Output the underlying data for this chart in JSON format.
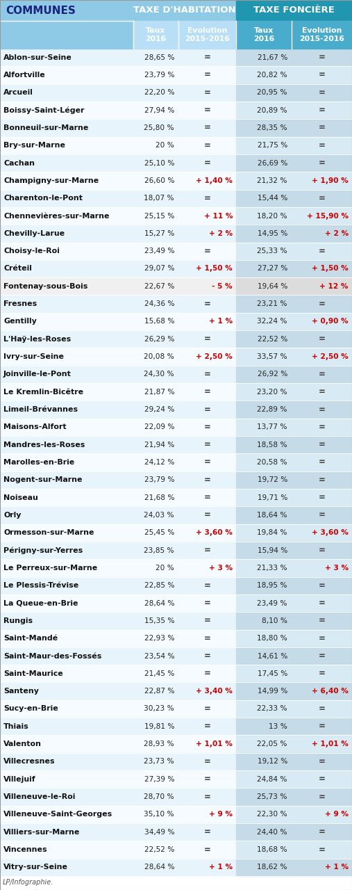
{
  "header1": "TAXE D'HABITATION",
  "header2": "TAXE FONCIÈRE",
  "col_communes": "COMMUNES",
  "footer": "LP/Infographie.",
  "rows": [
    [
      "Ablon-sur-Seine",
      "28,65 %",
      "=",
      "21,67 %",
      "="
    ],
    [
      "Alfortville",
      "23,79 %",
      "=",
      "20,82 %",
      "="
    ],
    [
      "Arcueil",
      "22,20 %",
      "=",
      "20,95 %",
      "="
    ],
    [
      "Boissy-Saint-Léger",
      "27,94 %",
      "=",
      "20,89 %",
      "="
    ],
    [
      "Bonneuil-sur-Marne",
      "25,80 %",
      "=",
      "28,35 %",
      "="
    ],
    [
      "Bry-sur-Marne",
      "20 %",
      "=",
      "21,75 %",
      "="
    ],
    [
      "Cachan",
      "25,10 %",
      "=",
      "26,69 %",
      "="
    ],
    [
      "Champigny-sur-Marne",
      "26,60 %",
      "+ 1,40 %",
      "21,32 %",
      "+ 1,90 %"
    ],
    [
      "Charenton-le-Pont",
      "18,07 %",
      "=",
      "15,44 %",
      "="
    ],
    [
      "Chennevières-sur-Marne",
      "25,15 %",
      "+ 11 %",
      "18,20 %",
      "+ 15,90 %"
    ],
    [
      "Chevilly-Larue",
      "15,27 %",
      "+ 2 %",
      "14,95 %",
      "+ 2 %"
    ],
    [
      "Choisy-le-Roi",
      "23,49 %",
      "=",
      "25,33 %",
      "="
    ],
    [
      "Créteil",
      "29,07 %",
      "+ 1,50 %",
      "27,27 %",
      "+ 1,50 %"
    ],
    [
      "Fontenay-sous-Bois",
      "22,67 %",
      "- 5 %",
      "19,64 %",
      "+ 12 %"
    ],
    [
      "Fresnes",
      "24,36 %",
      "=",
      "23,21 %",
      "="
    ],
    [
      "Gentilly",
      "15,68 %",
      "+ 1 %",
      "32,24 %",
      "+ 0,90 %"
    ],
    [
      "L'Haÿ-les-Roses",
      "26,29 %",
      "=",
      "22,52 %",
      "="
    ],
    [
      "Ivry-sur-Seine",
      "20,08 %",
      "+ 2,50 %",
      "33,57 %",
      "+ 2,50 %"
    ],
    [
      "Joinville-le-Pont",
      "24,30 %",
      "=",
      "26,92 %",
      "="
    ],
    [
      "Le Kremlin-Bicêtre",
      "21,87 %",
      "=",
      "23,20 %",
      "="
    ],
    [
      "Limeil-Brévannes",
      "29,24 %",
      "=",
      "22,89 %",
      "="
    ],
    [
      "Maisons-Alfort",
      "22,09 %",
      "=",
      "13,77 %",
      "="
    ],
    [
      "Mandres-les-Roses",
      "21,94 %",
      "=",
      "18,58 %",
      "="
    ],
    [
      "Marolles-en-Brie",
      "24,12 %",
      "=",
      "20,58 %",
      "="
    ],
    [
      "Nogent-sur-Marne",
      "23,79 %",
      "=",
      "19,72 %",
      "="
    ],
    [
      "Noiseau",
      "21,68 %",
      "=",
      "19,71 %",
      "="
    ],
    [
      "Orly",
      "24,03 %",
      "=",
      "18,64 %",
      "="
    ],
    [
      "Ormesson-sur-Marne",
      "25,45 %",
      "+ 3,60 %",
      "19,84 %",
      "+ 3,60 %"
    ],
    [
      "Périgny-sur-Yerres",
      "23,85 %",
      "=",
      "15,94 %",
      "="
    ],
    [
      "Le Perreux-sur-Marne",
      "20 %",
      "+ 3 %",
      "21,33 %",
      "+ 3 %"
    ],
    [
      "Le Plessis-Trévise",
      "22,85 %",
      "=",
      "18,95 %",
      "="
    ],
    [
      "La Queue-en-Brie",
      "28,64 %",
      "=",
      "23,49 %",
      "="
    ],
    [
      "Rungis",
      "15,35 %",
      "=",
      "8,10 %",
      "="
    ],
    [
      "Saint-Mandé",
      "22,93 %",
      "=",
      "18,80 %",
      "="
    ],
    [
      "Saint-Maur-des-Fossés",
      "23,54 %",
      "=",
      "14,61 %",
      "="
    ],
    [
      "Saint-Maurice",
      "21,45 %",
      "=",
      "17,45 %",
      "="
    ],
    [
      "Santeny",
      "22,87 %",
      "+ 3,40 %",
      "14,99 %",
      "+ 6,40 %"
    ],
    [
      "Sucy-en-Brie",
      "30,23 %",
      "=",
      "22,33 %",
      "="
    ],
    [
      "Thiais",
      "19,81 %",
      "=",
      "13 %",
      "="
    ],
    [
      "Valenton",
      "28,93 %",
      "+ 1,01 %",
      "22,05 %",
      "+ 1,01 %"
    ],
    [
      "Villecresnes",
      "23,73 %",
      "=",
      "19,12 %",
      "="
    ],
    [
      "Villejuif",
      "27,39 %",
      "=",
      "24,84 %",
      "="
    ],
    [
      "Villeneuve-le-Roi",
      "28,70 %",
      "=",
      "25,73 %",
      "="
    ],
    [
      "Villeneuve-Saint-Georges",
      "35,10 %",
      "+ 9 %",
      "22,30 %",
      "+ 9 %"
    ],
    [
      "Villiers-sur-Marne",
      "34,49 %",
      "=",
      "24,40 %",
      "="
    ],
    [
      "Vincennes",
      "22,52 %",
      "=",
      "18,68 %",
      "="
    ],
    [
      "Vitry-sur-Seine",
      "28,64 %",
      "+ 1 %",
      "18,62 %",
      "+ 1 %"
    ]
  ],
  "color_communes_header_bg": "#8ecae6",
  "color_th_header_bg": "#8ecae6",
  "color_tf_header_bg": "#2196b0",
  "color_th_subheader_bg": "#b8dff5",
  "color_tf_subheader_bg": "#4aaccc",
  "color_communes_text": "#1a237e",
  "color_row_light1": "#e8f4fb",
  "color_row_light2": "#f5fbfe",
  "color_tf_row_light1": "#c5dce8",
  "color_tf_row_light2": "#d8eaf3",
  "color_fontenay_bg": "#f0f0f0",
  "color_tf_fontenay_bg": "#dcdcdc",
  "highlight": "#cc0000"
}
